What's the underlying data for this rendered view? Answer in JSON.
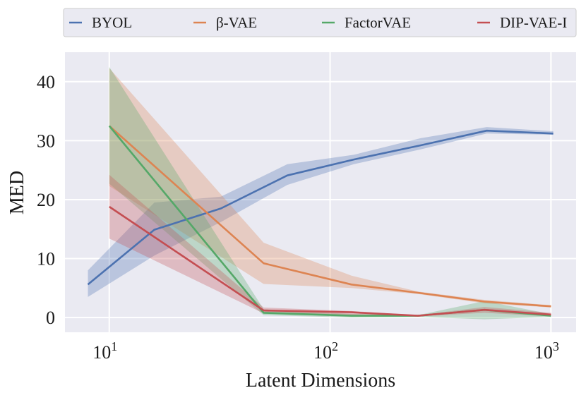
{
  "chart_data": {
    "type": "line",
    "xscale": "log",
    "xlabel": "Latent Dimensions",
    "ylabel": "MED",
    "xlim": [
      6.3,
      1300
    ],
    "ylim": [
      -2.5,
      45
    ],
    "grid": true,
    "legend_position": "top",
    "y_ticks": [
      0,
      10,
      20,
      30,
      40
    ],
    "x_ticks": [
      {
        "value": 10,
        "base": "10",
        "exp": "1"
      },
      {
        "value": 100,
        "base": "10",
        "exp": "2"
      },
      {
        "value": 1000,
        "base": "10",
        "exp": "3"
      }
    ],
    "series": [
      {
        "name": "BYOL",
        "color": "#4c72b0",
        "x": [
          8,
          16,
          32,
          64,
          128,
          256,
          512,
          1024
        ],
        "y": [
          5.6,
          14.9,
          18.5,
          24.1,
          26.8,
          29.2,
          31.7,
          31.2
        ],
        "lower": [
          3.5,
          10.5,
          16.2,
          22.5,
          26.0,
          28.5,
          31.2,
          31.0
        ],
        "upper": [
          8.0,
          19.5,
          20.5,
          26.0,
          27.6,
          30.4,
          32.3,
          31.6
        ]
      },
      {
        "name": "β-VAE",
        "color": "#dd8452",
        "x": [
          10,
          50,
          125,
          250,
          500,
          1000
        ],
        "y": [
          32.5,
          9.2,
          5.6,
          4.2,
          2.7,
          1.9
        ],
        "lower": [
          22.3,
          5.7,
          5.0,
          4.0,
          2.4,
          1.7
        ],
        "upper": [
          42.3,
          12.7,
          7.1,
          4.4,
          3.0,
          2.1
        ]
      },
      {
        "name": "FactorVAE",
        "color": "#55a868",
        "x": [
          10,
          50,
          125,
          250,
          500,
          1000
        ],
        "y": [
          32.5,
          0.8,
          0.3,
          0.3,
          1.3,
          0.3
        ],
        "lower": [
          22.7,
          0.4,
          0.0,
          0.1,
          -0.3,
          0.1
        ],
        "upper": [
          42.5,
          1.4,
          0.6,
          0.4,
          2.8,
          0.6
        ]
      },
      {
        "name": "DIP-VAE-I",
        "color": "#c44e52",
        "x": [
          10,
          50,
          125,
          250,
          500,
          1000
        ],
        "y": [
          18.8,
          1.2,
          0.9,
          0.3,
          1.3,
          0.5
        ],
        "lower": [
          13.4,
          0.7,
          0.4,
          0.2,
          0.8,
          0.2
        ],
        "upper": [
          24.2,
          1.7,
          1.1,
          0.4,
          1.8,
          0.8
        ]
      }
    ]
  }
}
